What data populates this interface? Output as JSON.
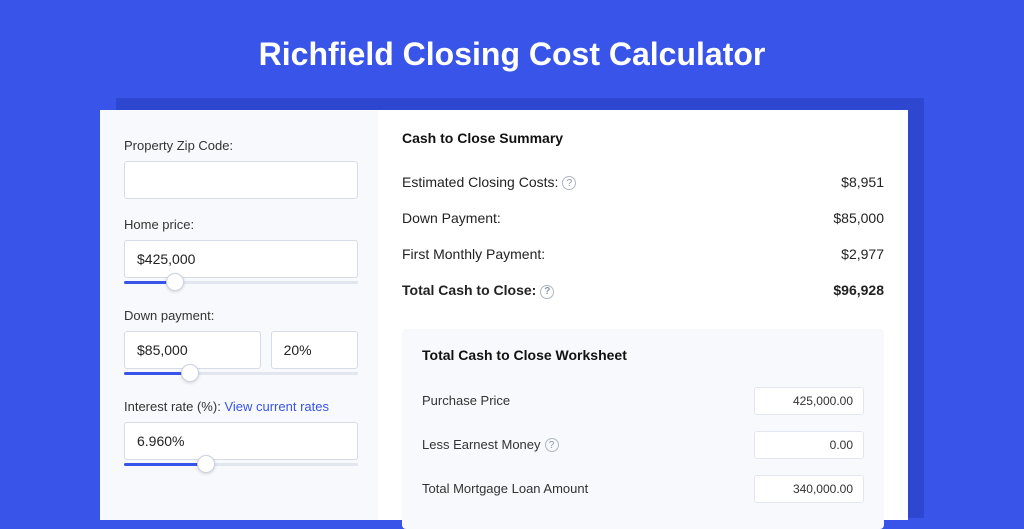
{
  "colors": {
    "page_bg": "#3954e8",
    "shadow_bg": "#2e47d0",
    "card_bg": "#ffffff",
    "panel_bg": "#f7f9fc",
    "input_border": "#d6dbe6",
    "slider_track": "#e2e6ef",
    "slider_fill": "#3954e8",
    "link": "#3954e8",
    "text": "#222222",
    "muted_text": "#333333",
    "help_border": "#b0b6c4"
  },
  "title": "Richfield Closing Cost Calculator",
  "inputs": {
    "zip": {
      "label": "Property Zip Code:",
      "value": ""
    },
    "home_price": {
      "label": "Home price:",
      "value": "$425,000",
      "slider_percent": 22
    },
    "down_payment": {
      "label": "Down payment:",
      "value": "$85,000",
      "pct": "20%",
      "slider_percent": 28
    },
    "interest_rate": {
      "label": "Interest rate (%):",
      "link_text": "View current rates",
      "value": "6.960%",
      "slider_percent": 35
    }
  },
  "summary": {
    "title": "Cash to Close Summary",
    "rows": [
      {
        "label": "Estimated Closing Costs:",
        "help": true,
        "value": "$8,951",
        "bold": false
      },
      {
        "label": "Down Payment:",
        "help": false,
        "value": "$85,000",
        "bold": false
      },
      {
        "label": "First Monthly Payment:",
        "help": false,
        "value": "$2,977",
        "bold": false
      },
      {
        "label": "Total Cash to Close:",
        "help": true,
        "value": "$96,928",
        "bold": true
      }
    ]
  },
  "worksheet": {
    "title": "Total Cash to Close Worksheet",
    "rows": [
      {
        "label": "Purchase Price",
        "help": false,
        "value": "425,000.00"
      },
      {
        "label": "Less Earnest Money",
        "help": true,
        "value": "0.00"
      },
      {
        "label": "Total Mortgage Loan Amount",
        "help": false,
        "value": "340,000.00"
      }
    ]
  }
}
